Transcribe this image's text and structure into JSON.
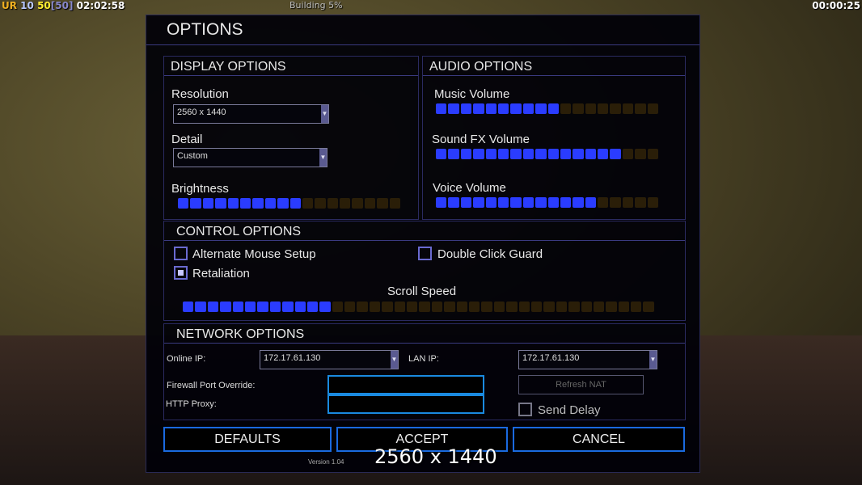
{
  "hud": {
    "faction": "UR",
    "power": "10",
    "units": "50",
    "units_max": "[50]",
    "game_time": "02:02:58",
    "building": "Building 5%",
    "timer": "00:00:25"
  },
  "title": "OPTIONS",
  "display": {
    "header": "DISPLAY OPTIONS",
    "resolution_label": "Resolution",
    "resolution_value": "2560 x 1440",
    "detail_label": "Detail",
    "detail_value": "Custom",
    "brightness_label": "Brightness",
    "brightness": {
      "filled": 10,
      "total": 18
    }
  },
  "audio": {
    "header": "AUDIO OPTIONS",
    "music_label": "Music Volume",
    "music": {
      "filled": 10,
      "total": 18
    },
    "sfx_label": "Sound FX Volume",
    "sfx": {
      "filled": 15,
      "total": 18
    },
    "voice_label": "Voice Volume",
    "voice": {
      "filled": 13,
      "total": 18
    }
  },
  "control": {
    "header": "CONTROL OPTIONS",
    "alt_mouse": "Alternate Mouse Setup",
    "alt_mouse_checked": false,
    "double_click": "Double Click Guard",
    "double_click_checked": false,
    "retaliation": "Retaliation",
    "retaliation_checked": true,
    "scroll_label": "Scroll Speed",
    "scroll": {
      "filled": 12,
      "total": 38
    }
  },
  "network": {
    "header": "NETWORK OPTIONS",
    "online_ip_label": "Online IP:",
    "online_ip": "172.17.61.130",
    "lan_ip_label": "LAN IP:",
    "lan_ip": "172.17.61.130",
    "firewall_label": "Firewall Port Override:",
    "proxy_label": "HTTP Proxy:",
    "refresh_nat": "Refresh NAT",
    "send_delay": "Send Delay",
    "send_delay_checked": false
  },
  "buttons": {
    "defaults": "DEFAULTS",
    "accept": "ACCEPT",
    "cancel": "CANCEL"
  },
  "version": "Version 1.04",
  "overlay_resolution": "2560 x 1440"
}
